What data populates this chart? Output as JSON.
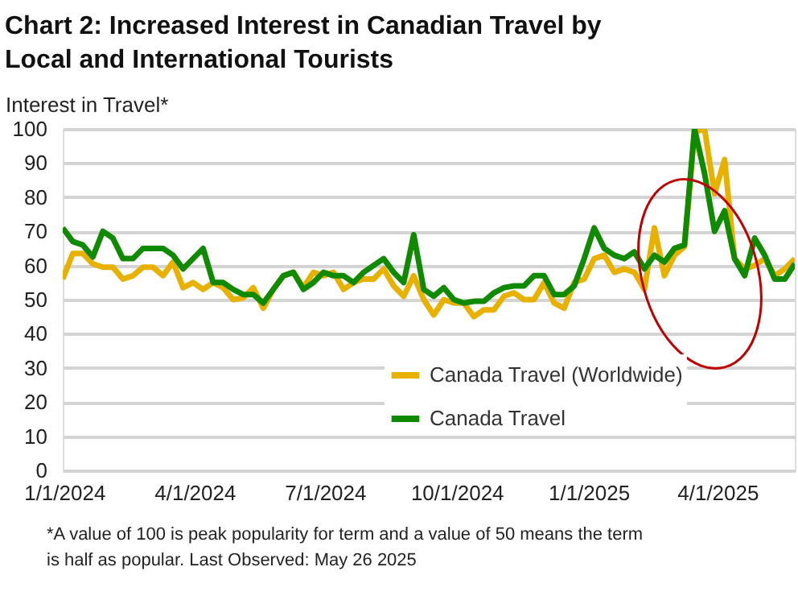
{
  "chart_data": {
    "type": "line",
    "title": "Chart 2: Increased Interest in Canadian Travel by Local and International Tourists",
    "ylabel": "Interest in Travel*",
    "annotations": [
      "*A value of 100 is peak popularity for term and a value of 50 means the term is half as popular. Last Observed: May 26 2025"
    ],
    "x": [
      "2023-12-31",
      "2024-01-07",
      "2024-01-14",
      "2024-01-21",
      "2024-01-28",
      "2024-02-04",
      "2024-02-11",
      "2024-02-18",
      "2024-02-25",
      "2024-03-03",
      "2024-03-10",
      "2024-03-17",
      "2024-03-24",
      "2024-03-31",
      "2024-04-07",
      "2024-04-14",
      "2024-04-21",
      "2024-04-28",
      "2024-05-05",
      "2024-05-12",
      "2024-05-19",
      "2024-05-26",
      "2024-06-02",
      "2024-06-09",
      "2024-06-16",
      "2024-06-23",
      "2024-06-30",
      "2024-07-07",
      "2024-07-14",
      "2024-07-21",
      "2024-07-28",
      "2024-08-04",
      "2024-08-11",
      "2024-08-18",
      "2024-08-25",
      "2024-09-01",
      "2024-09-08",
      "2024-09-15",
      "2024-09-22",
      "2024-09-29",
      "2024-10-06",
      "2024-10-13",
      "2024-10-20",
      "2024-10-27",
      "2024-11-03",
      "2024-11-10",
      "2024-11-17",
      "2024-11-24",
      "2024-12-01",
      "2024-12-08",
      "2024-12-15",
      "2024-12-22",
      "2024-12-29",
      "2025-01-05",
      "2025-01-12",
      "2025-01-19",
      "2025-01-26",
      "2025-02-02",
      "2025-02-09",
      "2025-02-16",
      "2025-02-23",
      "2025-03-02",
      "2025-03-09",
      "2025-03-16",
      "2025-03-23",
      "2025-03-30",
      "2025-04-06",
      "2025-04-13",
      "2025-04-20",
      "2025-04-27",
      "2025-05-04",
      "2025-05-11",
      "2025-05-18",
      "2025-05-25"
    ],
    "series": [
      {
        "name": "Canada Travel (Worldwide)",
        "color": "#e8b100",
        "values": [
          56,
          63.5,
          63.5,
          60.5,
          59.5,
          59.5,
          56,
          57,
          59.5,
          59.5,
          57,
          61,
          53.5,
          55,
          53,
          55,
          53.5,
          50,
          50.5,
          53.5,
          47.5,
          53,
          57,
          58,
          53.5,
          58,
          57,
          58,
          53,
          55,
          56,
          56,
          59,
          54,
          51,
          57,
          50,
          45.5,
          50,
          49,
          49,
          45,
          47,
          47,
          51,
          52,
          50,
          50,
          55,
          49,
          47.5,
          55,
          56,
          62,
          63,
          58,
          59,
          58,
          53,
          71,
          57,
          63,
          65.5,
          99,
          100,
          81,
          91,
          62,
          59,
          60,
          62,
          57,
          59,
          62
        ]
      },
      {
        "name": "Canada Travel",
        "color": "#108a00",
        "values": [
          71,
          67,
          66,
          62.5,
          70,
          68,
          62,
          62,
          65,
          65,
          65,
          63,
          59,
          62,
          65,
          55,
          55,
          53,
          51.5,
          51.5,
          49,
          53,
          57,
          58,
          53,
          55,
          58,
          57,
          57,
          55,
          58,
          60,
          62,
          58,
          55,
          69,
          53,
          51,
          53.5,
          50,
          49,
          49.5,
          49.5,
          52,
          53.5,
          54,
          54,
          57,
          57,
          51.5,
          51.5,
          54,
          62,
          71,
          65,
          63,
          62,
          64,
          59,
          63,
          61,
          65,
          66,
          100,
          87,
          70,
          76,
          62,
          57,
          68,
          63,
          56,
          56,
          60.5
        ]
      }
    ],
    "xlim": [
      "2023-12-31",
      "2025-05-25"
    ],
    "xticks": [
      {
        "value": "2024-01-01",
        "label": "1/1/2024"
      },
      {
        "value": "2024-04-01",
        "label": "4/1/2024"
      },
      {
        "value": "2024-07-01",
        "label": "7/1/2024"
      },
      {
        "value": "2024-10-01",
        "label": "10/1/2024"
      },
      {
        "value": "2025-01-01",
        "label": "1/1/2025"
      },
      {
        "value": "2025-04-01",
        "label": "4/1/2025"
      }
    ],
    "ylim": [
      0,
      100
    ],
    "yticks": [
      0,
      10,
      20,
      30,
      40,
      50,
      60,
      70,
      80,
      90,
      100
    ],
    "grid": "y",
    "legend": "bottom right",
    "marker": "none",
    "line_style": "solid"
  }
}
